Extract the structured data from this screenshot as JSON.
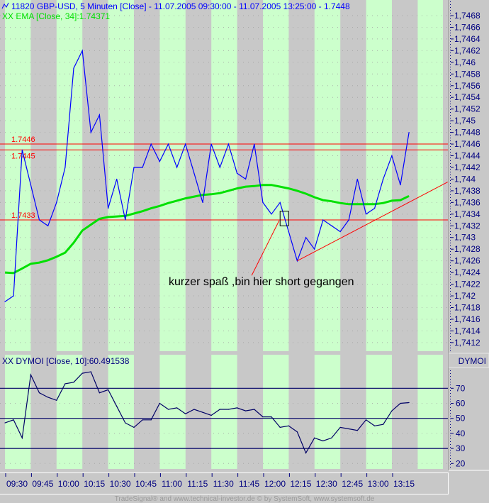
{
  "header": {
    "main_title": "11820  GBP-USD, 5 Minuten [Close] - 11.07.2005 09:30:00 - 11.07.2005 13:25:00 - 1.7448",
    "main_icon": "line-chart-icon",
    "ema_legend": "XX EMA [Close, 34]:1.74371",
    "indicator_legend": "XX DYMOI [Close, 10]:60.491538",
    "indicator_axis_label": "DYMOI"
  },
  "footer": "TradeSignal® and www.technical-investor.de © by  SystemSoft, www.systemsoft.de",
  "annotation": "kurzer spaß ,bin hier short gegangen",
  "colors": {
    "price": "#0000ff",
    "ema": "#00e000",
    "level": "#ff0000",
    "indicator": "#000066",
    "stripe_green": "#ccffcc",
    "stripe_gray": "#c8c8c8",
    "axis_text": "#000080"
  },
  "chart_data": [
    {
      "type": "line",
      "title": "11820  GBP-USD, 5 Minuten [Close]",
      "x_tick_labels": [
        "09:30",
        "09:45",
        "10:00",
        "10:15",
        "10:30",
        "10:45",
        "11:00",
        "11:15",
        "11:30",
        "11:45",
        "12:00",
        "12:15",
        "12:30",
        "12:45",
        "13:00",
        "13:15"
      ],
      "y_tick_labels": [
        "1,7468",
        "1,7466",
        "1,7464",
        "1,7462",
        "1,746",
        "1,7458",
        "1,7456",
        "1,7454",
        "1,7452",
        "1,745",
        "1,7448",
        "1,7446",
        "1,7444",
        "1,7442",
        "1,744",
        "1,7438",
        "1,7436",
        "1,7434",
        "1,7432",
        "1,743",
        "1,7428",
        "1,7426",
        "1,7424",
        "1,7422",
        "1,742",
        "1,7418",
        "1,7416",
        "1,7414",
        "1,7412"
      ],
      "ylim": [
        1.74115,
        1.7469
      ],
      "x_interval_minutes": 5,
      "x_start": "09:30",
      "series": [
        {
          "name": "GBP-USD Close",
          "values": [
            1.7419,
            1.742,
            1.7445,
            1.7439,
            1.7433,
            1.7432,
            1.7436,
            1.7442,
            1.7459,
            1.7462,
            1.7448,
            1.7451,
            1.7435,
            1.744,
            1.7433,
            1.7442,
            1.7442,
            1.7446,
            1.7443,
            1.7446,
            1.7442,
            1.7446,
            1.7441,
            1.7436,
            1.7446,
            1.7442,
            1.7446,
            1.7441,
            1.744,
            1.7446,
            1.7436,
            1.7434,
            1.7436,
            1.7431,
            1.7426,
            1.743,
            1.7428,
            1.7433,
            1.7432,
            1.7431,
            1.7433,
            1.744,
            1.7434,
            1.7435,
            1.744,
            1.7444,
            1.7439,
            1.7448
          ]
        },
        {
          "name": "EMA [Close, 34]",
          "values": [
            1.7424,
            1.74239,
            1.74247,
            1.74255,
            1.74257,
            1.74261,
            1.74267,
            1.74274,
            1.74291,
            1.74312,
            1.74322,
            1.74332,
            1.74335,
            1.74336,
            1.74337,
            1.74341,
            1.74345,
            1.7435,
            1.74354,
            1.74359,
            1.74363,
            1.74367,
            1.7437,
            1.74373,
            1.74374,
            1.74376,
            1.7438,
            1.74384,
            1.74387,
            1.74388,
            1.7439,
            1.7439,
            1.74387,
            1.74384,
            1.7438,
            1.74375,
            1.74369,
            1.74364,
            1.74362,
            1.74359,
            1.74357,
            1.74357,
            1.74357,
            1.74357,
            1.74359,
            1.74363,
            1.74364,
            1.74371
          ]
        }
      ],
      "levels": [
        {
          "label": "1.7446",
          "value": 1.7446
        },
        {
          "label": "1.7445",
          "value": 1.7445
        },
        {
          "label": "1.7433",
          "value": 1.7433
        }
      ],
      "trendline": {
        "from": {
          "index": 34,
          "value": 1.7426
        },
        "to": {
          "index": 51.5,
          "value": 1.74395
        }
      },
      "annotation_arrow": {
        "from": {
          "index": 28.7,
          "value": 1.74235
        },
        "to": {
          "index": 31.9,
          "value": 1.74329
        }
      },
      "marker_box": {
        "index": 32.5,
        "value_top": 1.74345,
        "value_bottom": 1.7432
      }
    },
    {
      "type": "line",
      "title": "DYMOI [Close, 10]",
      "y_tick_labels": [
        "70",
        "60",
        "50",
        "40",
        "30",
        "20"
      ],
      "ylim": [
        17,
        89
      ],
      "reference_lines": [
        70,
        50,
        30
      ],
      "series": [
        {
          "name": "DYMOI",
          "values": [
            47,
            49,
            37,
            79,
            67,
            64,
            62,
            73,
            74,
            80,
            81,
            67,
            69,
            58,
            47,
            44,
            49,
            49,
            60,
            56,
            57,
            53,
            56,
            54,
            52,
            56,
            56,
            57,
            55,
            56,
            51,
            51,
            44,
            45,
            41,
            27,
            37,
            35,
            37,
            44,
            43,
            42,
            49,
            45,
            46,
            55,
            60,
            60.49
          ]
        }
      ]
    }
  ]
}
